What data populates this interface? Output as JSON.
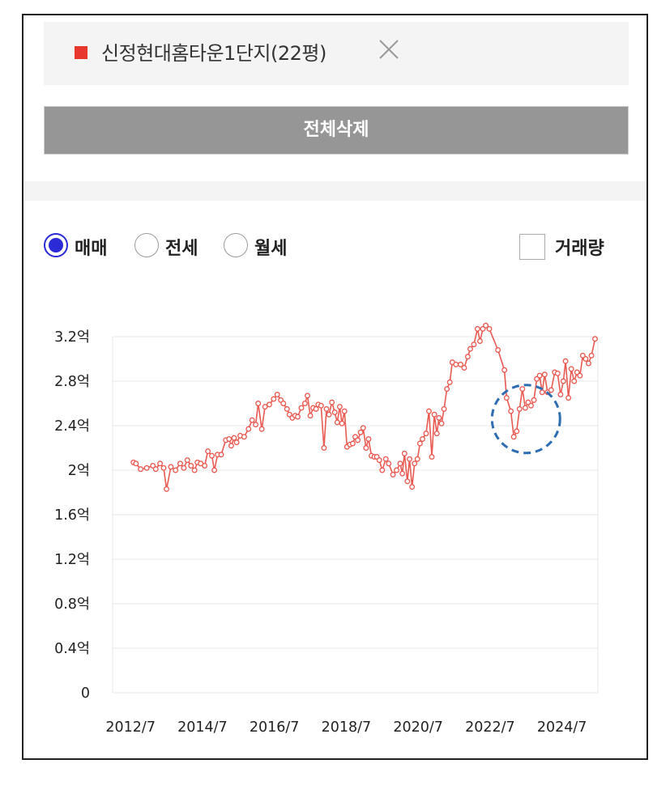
{
  "filter": {
    "tag_label": "신정현대홈타운1단지(22평)",
    "tag_color": "#e8372c",
    "close_icon": "close-icon",
    "delete_all_label": "전체삭제"
  },
  "options": {
    "radios": [
      {
        "label": "매매",
        "checked": true
      },
      {
        "label": "전세",
        "checked": false
      },
      {
        "label": "월세",
        "checked": false
      }
    ],
    "volume_label": "거래량",
    "volume_checked": false
  },
  "chart_data": {
    "type": "line",
    "title": "",
    "xlabel": "",
    "ylabel": "",
    "x_unit": "year/month",
    "ylim": [
      0,
      3.2
    ],
    "y_ticks": [
      0,
      0.4,
      0.8,
      1.2,
      1.6,
      2.0,
      2.4,
      2.8,
      3.2
    ],
    "y_tick_labels": [
      "0",
      "0.4억",
      "0.8억",
      "1.2억",
      "1.6억",
      "2억",
      "2.4억",
      "2.8억",
      "3.2억"
    ],
    "x_tick_labels": [
      "2012/7",
      "2014/7",
      "2016/7",
      "2018/7",
      "2020/7",
      "2022/7",
      "2024/7"
    ],
    "grid": true,
    "series_color": "#e85a52",
    "highlight_color": "#2f6db3",
    "highlight_center": [
      2023.5,
      2.46
    ],
    "series": [
      {
        "name": "",
        "points": [
          [
            2012.58,
            2.07
          ],
          [
            2012.65,
            2.06
          ],
          [
            2012.78,
            2.01
          ],
          [
            2012.95,
            2.02
          ],
          [
            2013.12,
            2.04
          ],
          [
            2013.2,
            2.01
          ],
          [
            2013.32,
            2.06
          ],
          [
            2013.42,
            2.02
          ],
          [
            2013.5,
            1.83
          ],
          [
            2013.62,
            2.03
          ],
          [
            2013.75,
            2.0
          ],
          [
            2013.88,
            2.06
          ],
          [
            2013.98,
            2.02
          ],
          [
            2014.08,
            2.09
          ],
          [
            2014.18,
            2.04
          ],
          [
            2014.28,
            2.0
          ],
          [
            2014.36,
            2.07
          ],
          [
            2014.45,
            2.06
          ],
          [
            2014.56,
            2.04
          ],
          [
            2014.65,
            2.17
          ],
          [
            2014.76,
            2.13
          ],
          [
            2014.83,
            2.0
          ],
          [
            2014.92,
            2.14
          ],
          [
            2015.02,
            2.14
          ],
          [
            2015.15,
            2.27
          ],
          [
            2015.24,
            2.28
          ],
          [
            2015.3,
            2.22
          ],
          [
            2015.38,
            2.29
          ],
          [
            2015.45,
            2.25
          ],
          [
            2015.55,
            2.31
          ],
          [
            2015.66,
            2.3
          ],
          [
            2015.78,
            2.37
          ],
          [
            2015.88,
            2.45
          ],
          [
            2015.98,
            2.41
          ],
          [
            2016.05,
            2.6
          ],
          [
            2016.15,
            2.37
          ],
          [
            2016.24,
            2.57
          ],
          [
            2016.36,
            2.59
          ],
          [
            2016.48,
            2.64
          ],
          [
            2016.58,
            2.68
          ],
          [
            2016.68,
            2.63
          ],
          [
            2016.75,
            2.6
          ],
          [
            2016.85,
            2.55
          ],
          [
            2016.92,
            2.5
          ],
          [
            2017.0,
            2.47
          ],
          [
            2017.08,
            2.49
          ],
          [
            2017.15,
            2.48
          ],
          [
            2017.25,
            2.56
          ],
          [
            2017.35,
            2.6
          ],
          [
            2017.42,
            2.67
          ],
          [
            2017.5,
            2.49
          ],
          [
            2017.58,
            2.56
          ],
          [
            2017.66,
            2.55
          ],
          [
            2017.72,
            2.59
          ],
          [
            2017.8,
            2.58
          ],
          [
            2017.88,
            2.2
          ],
          [
            2017.95,
            2.55
          ],
          [
            2018.02,
            2.5
          ],
          [
            2018.1,
            2.61
          ],
          [
            2018.18,
            2.52
          ],
          [
            2018.25,
            2.43
          ],
          [
            2018.32,
            2.57
          ],
          [
            2018.38,
            2.42
          ],
          [
            2018.45,
            2.53
          ],
          [
            2018.52,
            2.21
          ],
          [
            2018.6,
            2.23
          ],
          [
            2018.68,
            2.24
          ],
          [
            2018.75,
            2.3
          ],
          [
            2018.82,
            2.27
          ],
          [
            2018.9,
            2.34
          ],
          [
            2018.97,
            2.38
          ],
          [
            2019.05,
            2.2
          ],
          [
            2019.12,
            2.28
          ],
          [
            2019.2,
            2.13
          ],
          [
            2019.28,
            2.12
          ],
          [
            2019.35,
            2.12
          ],
          [
            2019.42,
            2.09
          ],
          [
            2019.5,
            2.0
          ],
          [
            2019.6,
            2.1
          ],
          [
            2019.68,
            2.06
          ],
          [
            2019.8,
            1.96
          ],
          [
            2019.9,
            2.0
          ],
          [
            2020.0,
            2.06
          ],
          [
            2020.06,
            1.97
          ],
          [
            2020.12,
            2.15
          ],
          [
            2020.2,
            1.9
          ],
          [
            2020.26,
            2.1
          ],
          [
            2020.33,
            1.85
          ],
          [
            2020.4,
            2.06
          ],
          [
            2020.48,
            2.1
          ],
          [
            2020.55,
            2.24
          ],
          [
            2020.62,
            2.28
          ],
          [
            2020.72,
            2.33
          ],
          [
            2020.8,
            2.53
          ],
          [
            2020.88,
            2.12
          ],
          [
            2020.95,
            2.5
          ],
          [
            2021.02,
            2.33
          ],
          [
            2021.08,
            2.47
          ],
          [
            2021.15,
            2.42
          ],
          [
            2021.22,
            2.55
          ],
          [
            2021.3,
            2.73
          ],
          [
            2021.38,
            2.79
          ],
          [
            2021.45,
            2.97
          ],
          [
            2021.55,
            2.95
          ],
          [
            2021.68,
            2.95
          ],
          [
            2021.78,
            2.92
          ],
          [
            2021.88,
            3.02
          ],
          [
            2021.95,
            3.09
          ],
          [
            2022.05,
            3.13
          ],
          [
            2022.15,
            3.27
          ],
          [
            2022.22,
            3.16
          ],
          [
            2022.3,
            3.27
          ],
          [
            2022.38,
            3.3
          ],
          [
            2022.48,
            3.27
          ],
          [
            2022.72,
            3.08
          ],
          [
            2022.9,
            2.9
          ],
          [
            2022.96,
            2.65
          ],
          [
            2023.08,
            2.53
          ],
          [
            2023.16,
            2.3
          ],
          [
            2023.24,
            2.35
          ],
          [
            2023.32,
            2.55
          ],
          [
            2023.4,
            2.73
          ],
          [
            2023.48,
            2.56
          ],
          [
            2023.56,
            2.61
          ],
          [
            2023.64,
            2.58
          ],
          [
            2023.72,
            2.63
          ],
          [
            2023.8,
            2.82
          ],
          [
            2023.88,
            2.85
          ],
          [
            2023.95,
            2.7
          ],
          [
            2024.02,
            2.86
          ],
          [
            2024.1,
            2.7
          ],
          [
            2024.2,
            2.72
          ],
          [
            2024.3,
            2.88
          ],
          [
            2024.38,
            2.87
          ],
          [
            2024.46,
            2.68
          ],
          [
            2024.54,
            2.8
          ],
          [
            2024.6,
            2.98
          ],
          [
            2024.68,
            2.65
          ],
          [
            2024.76,
            2.91
          ],
          [
            2024.84,
            2.8
          ],
          [
            2024.92,
            2.88
          ],
          [
            2025.0,
            2.85
          ],
          [
            2025.08,
            3.03
          ],
          [
            2025.16,
            3.0
          ],
          [
            2025.24,
            2.96
          ],
          [
            2025.32,
            3.03
          ],
          [
            2025.42,
            3.18
          ]
        ]
      }
    ]
  }
}
